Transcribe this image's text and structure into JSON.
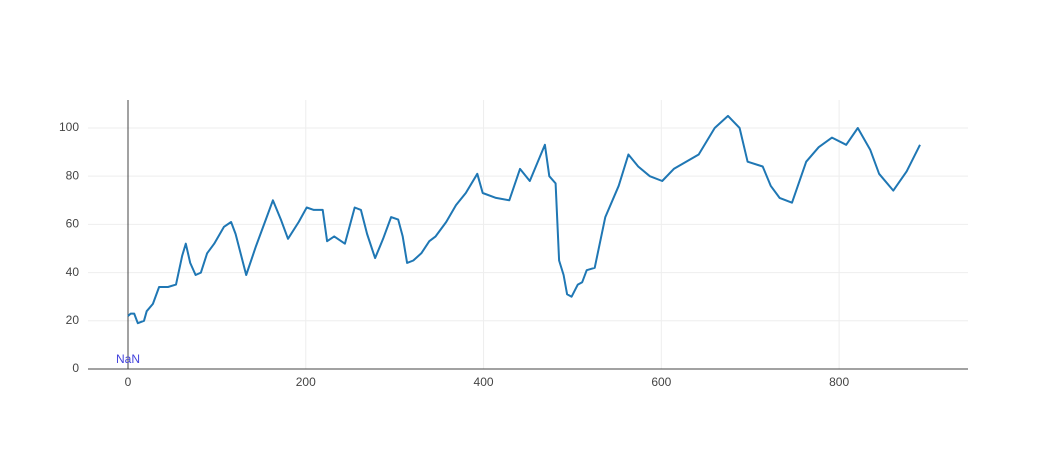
{
  "chart_data": {
    "type": "line",
    "color": "#1f77b4",
    "x": [
      0,
      3,
      7,
      11,
      18,
      21,
      28,
      35,
      45,
      54,
      61,
      65,
      70,
      76,
      82,
      89,
      97,
      108,
      116,
      121,
      133,
      144,
      155,
      163,
      172,
      180,
      192,
      201,
      209,
      219,
      224,
      232,
      244,
      255,
      262,
      269,
      278,
      287,
      296,
      304,
      309,
      314,
      321,
      330,
      339,
      346,
      358,
      369,
      380,
      393,
      399,
      414,
      429,
      441,
      452,
      469,
      474,
      481,
      485,
      490,
      494,
      499,
      506,
      511,
      516,
      525,
      537,
      552,
      563,
      574,
      587,
      601,
      614,
      642,
      660,
      675,
      688,
      697,
      714,
      723,
      733,
      747,
      763,
      777,
      792,
      808,
      821,
      835,
      845,
      861,
      876,
      891
    ],
    "values": [
      22,
      23,
      23,
      19,
      20,
      24,
      27,
      34,
      34,
      35,
      47,
      52,
      44,
      39,
      40,
      48,
      52,
      59,
      61,
      56,
      39,
      51,
      62,
      70,
      62,
      54,
      61,
      67,
      66,
      66,
      53,
      55,
      52,
      67,
      66,
      56,
      46,
      54,
      63,
      62,
      55,
      44,
      45,
      48,
      53,
      55,
      61,
      68,
      73,
      81,
      73,
      71,
      70,
      83,
      78,
      93,
      80,
      77,
      45,
      39,
      31,
      30,
      35,
      36,
      41,
      42,
      63,
      76,
      89,
      84,
      80,
      78,
      83,
      89,
      100,
      105,
      100,
      86,
      84,
      76,
      71,
      69,
      86,
      92,
      96,
      93,
      100,
      91,
      81,
      74,
      82,
      93
    ],
    "xlim": [
      -45,
      945
    ],
    "ylim": [
      0,
      111.6
    ],
    "xticks": [
      0,
      200,
      400,
      600,
      800
    ],
    "yticks": [
      0,
      20,
      40,
      60,
      80,
      100
    ],
    "grid": true,
    "annotations": [
      {
        "text": "NaN",
        "x": 0,
        "y": 0,
        "color": "#4444dd"
      }
    ]
  }
}
